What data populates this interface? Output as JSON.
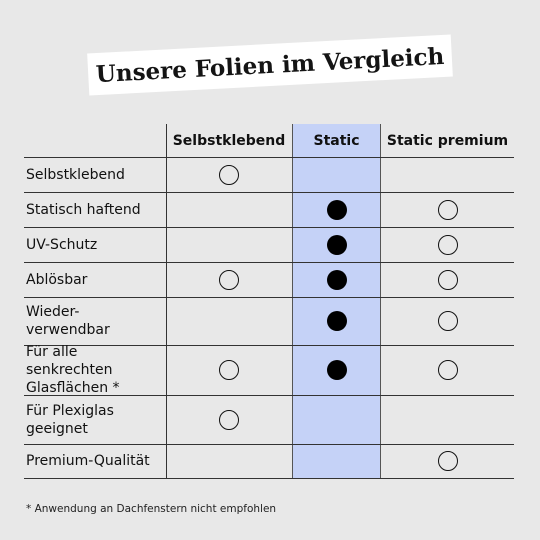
{
  "title": "Unsere Folien im Vergleich",
  "columns": [
    "Selbstklebend",
    "Static",
    "Static premium"
  ],
  "rows": [
    {
      "label": "Selbstklebend",
      "marks": [
        "empty",
        "",
        ""
      ]
    },
    {
      "label": "Statisch haftend",
      "marks": [
        "",
        "filled",
        "empty"
      ]
    },
    {
      "label": "UV-Schutz",
      "marks": [
        "",
        "filled",
        "empty"
      ]
    },
    {
      "label": "Ablösbar",
      "marks": [
        "empty",
        "filled",
        "empty"
      ]
    },
    {
      "label": "Wieder-\nverwendbar",
      "marks": [
        "",
        "filled",
        "empty"
      ]
    },
    {
      "label": "Für alle senkrechten\nGlasflächen *",
      "marks": [
        "empty",
        "filled",
        "empty"
      ]
    },
    {
      "label": "Für Plexiglas\ngeeignet",
      "marks": [
        "empty",
        "",
        ""
      ]
    },
    {
      "label": "Premium-Qualität",
      "marks": [
        "",
        "",
        "empty"
      ]
    }
  ],
  "colors": {
    "background": "#e8e8e8",
    "highlight_column": "#c5d2f7",
    "banner": "#ffffff"
  },
  "footnote": "* Anwendung an Dachfenstern nicht empfohlen"
}
